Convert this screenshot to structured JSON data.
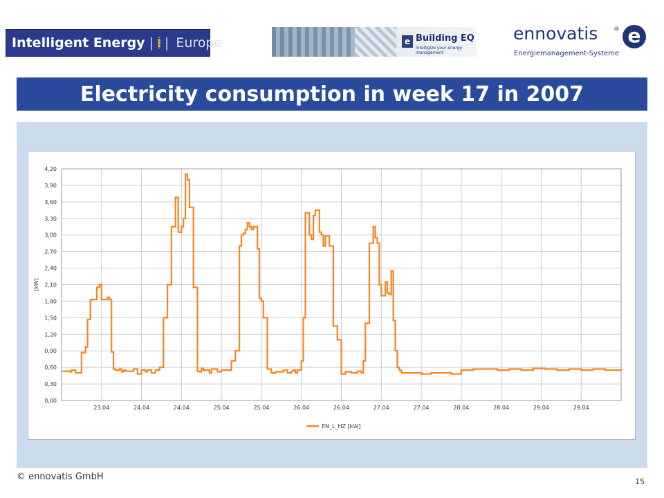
{
  "header": {
    "logos": {
      "intelligent_energy": {
        "main": "Intelligent Energy",
        "separator": "|",
        "sub": "Europe"
      },
      "building_eq": {
        "badge": "e",
        "name": "Building EQ",
        "tagline": "Intelligize your energy management"
      },
      "ennovatis": {
        "name": "ennovatis",
        "registered": "®",
        "mark": "e",
        "subtitle": "Energiemanagement-Systeme"
      }
    }
  },
  "title": "Electricity consumption in week 17 in 2007",
  "footer": {
    "copyright": "© ennovatis GmbH",
    "page": "15"
  },
  "colors": {
    "series": "#f5841f",
    "title_bar": "#2a4a9e",
    "panel": "#cddcec",
    "grid": "#cccccc"
  },
  "chart_data": {
    "type": "line",
    "title": "",
    "xlabel": "",
    "ylabel": "[kW]",
    "xlim": [
      0,
      14
    ],
    "ylim": [
      0,
      4.2
    ],
    "yticks": [
      "0,00",
      "0,30",
      "0,60",
      "0,90",
      "1,20",
      "1,50",
      "1,80",
      "2,10",
      "2,40",
      "2,70",
      "3,00",
      "3,30",
      "3,60",
      "3,90",
      "4,20"
    ],
    "xticks": [
      "23.04",
      "24.04",
      "24.04",
      "25.04",
      "25.04",
      "26.04",
      "26.04",
      "27.04",
      "27.04",
      "28.04",
      "28.04",
      "29.04",
      "29.04"
    ],
    "grid": true,
    "legend": {
      "position": "bottom",
      "entries": [
        "EN_L_HZ [kW]"
      ]
    },
    "series": [
      {
        "name": "EN_L_HZ [kW]",
        "x": [
          0,
          0.1,
          0.2,
          0.25,
          0.35,
          0.45,
          0.5,
          0.6,
          0.65,
          0.72,
          0.75,
          0.8,
          0.88,
          0.95,
          1.0,
          1.05,
          1.15,
          1.2,
          1.25,
          1.3,
          1.35,
          1.45,
          1.5,
          1.55,
          1.6,
          1.7,
          1.8,
          1.9,
          2.0,
          2.1,
          2.15,
          2.25,
          2.35,
          2.45,
          2.55,
          2.65,
          2.75,
          2.85,
          2.92,
          3.0,
          3.05,
          3.1,
          3.15,
          3.2,
          3.3,
          3.4,
          3.45,
          3.5,
          3.55,
          3.65,
          3.7,
          3.75,
          3.8,
          3.9,
          4.0,
          4.05,
          4.15,
          4.25,
          4.35,
          4.45,
          4.5,
          4.55,
          4.6,
          4.65,
          4.7,
          4.75,
          4.8,
          4.9,
          4.95,
          5.0,
          5.05,
          5.15,
          5.25,
          5.35,
          5.45,
          5.55,
          5.65,
          5.75,
          5.8,
          5.85,
          5.9,
          6.0,
          6.05,
          6.1,
          6.2,
          6.25,
          6.3,
          6.35,
          6.45,
          6.5,
          6.55,
          6.6,
          6.7,
          6.8,
          6.9,
          7.0,
          7.1,
          7.25,
          7.4,
          7.5,
          7.55,
          7.6,
          7.7,
          7.8,
          7.85,
          7.9,
          7.95,
          8.0,
          8.05,
          8.1,
          8.15,
          8.2,
          8.25,
          8.3,
          8.35,
          8.4,
          8.45,
          8.5,
          8.55,
          8.6,
          8.65,
          8.75,
          9.0,
          9.25,
          9.5,
          9.75,
          10.0,
          10.3,
          10.6,
          10.9,
          11.2,
          11.5,
          11.8,
          12.1,
          12.4,
          12.7,
          13.0,
          13.3,
          13.6,
          14.0
        ],
        "values": [
          0.53,
          0.53,
          0.52,
          0.55,
          0.5,
          0.5,
          0.87,
          0.97,
          1.47,
          1.82,
          1.83,
          1.83,
          2.05,
          2.1,
          1.83,
          1.83,
          1.87,
          1.83,
          0.88,
          0.57,
          0.55,
          0.57,
          0.52,
          0.55,
          0.53,
          0.53,
          0.57,
          0.48,
          0.55,
          0.52,
          0.55,
          0.5,
          0.55,
          0.6,
          1.5,
          2.1,
          3.15,
          3.68,
          3.05,
          3.15,
          3.3,
          4.1,
          4.0,
          3.5,
          2.05,
          0.53,
          0.52,
          0.58,
          0.55,
          0.55,
          0.5,
          0.57,
          0.57,
          0.52,
          0.55,
          0.55,
          0.55,
          0.72,
          0.9,
          2.8,
          3.0,
          3.03,
          3.1,
          3.22,
          3.15,
          3.1,
          3.15,
          2.75,
          1.85,
          1.8,
          1.5,
          0.57,
          0.5,
          0.52,
          0.52,
          0.55,
          0.5,
          0.53,
          0.55,
          0.5,
          0.55,
          0.72,
          1.5,
          3.4,
          3.0,
          2.92,
          3.35,
          3.45,
          3.05,
          3.0,
          2.8,
          2.98,
          2.8,
          1.35,
          1.1,
          0.48,
          0.52,
          0.5,
          0.53,
          0.5,
          0.72,
          1.4,
          2.85,
          3.15,
          2.95,
          2.85,
          2.1,
          1.9,
          1.9,
          2.15,
          1.95,
          1.92,
          2.35,
          1.45,
          0.9,
          0.6,
          0.55,
          0.5,
          0.5,
          0.5,
          0.5,
          0.5,
          0.48,
          0.5,
          0.5,
          0.48,
          0.55,
          0.57,
          0.57,
          0.55,
          0.57,
          0.55,
          0.58,
          0.57,
          0.55,
          0.57,
          0.55,
          0.57,
          0.55,
          0.57
        ]
      }
    ]
  }
}
